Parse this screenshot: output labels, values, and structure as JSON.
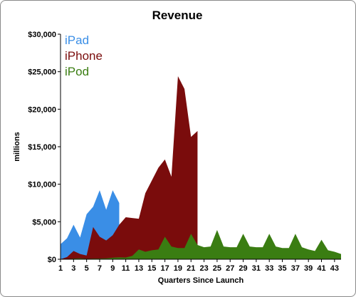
{
  "chart_data": {
    "type": "area",
    "title": "Revenue",
    "xlabel": "Quarters Since Launch",
    "ylabel": "millions",
    "xlim": [
      1,
      44
    ],
    "ylim": [
      0,
      30000
    ],
    "yticks": [
      0,
      5000,
      10000,
      15000,
      20000,
      25000,
      30000
    ],
    "ytick_labels": [
      "$0",
      "$5,000",
      "$10,000",
      "$15,000",
      "$20,000",
      "$25,000",
      "$30,000"
    ],
    "xticks": [
      1,
      3,
      5,
      7,
      9,
      11,
      13,
      15,
      17,
      19,
      21,
      23,
      25,
      27,
      29,
      31,
      33,
      35,
      37,
      39,
      41,
      43
    ],
    "grid": false,
    "legend_position": "top-left",
    "series": [
      {
        "name": "iPad",
        "color": "#3a8ee6",
        "x": [
          1,
          2,
          3,
          4,
          5,
          6,
          7,
          8,
          9,
          10
        ],
        "values": [
          2000,
          2800,
          4600,
          2900,
          6000,
          7000,
          9200,
          6600,
          9200,
          7500
        ]
      },
      {
        "name": "iPhone",
        "color": "#7a0c0c",
        "x": [
          1,
          2,
          3,
          4,
          5,
          6,
          7,
          8,
          9,
          10,
          11,
          12,
          13,
          14,
          15,
          16,
          17,
          18,
          19,
          20,
          21,
          22
        ],
        "values": [
          0,
          300,
          1100,
          700,
          500,
          4300,
          3000,
          2500,
          3200,
          4600,
          5600,
          5500,
          5400,
          8800,
          10500,
          12200,
          13300,
          11000,
          24400,
          22700,
          16300,
          17100
        ]
      },
      {
        "name": "iPod",
        "color": "#3a7d12",
        "x": [
          1,
          2,
          3,
          4,
          5,
          6,
          7,
          8,
          9,
          10,
          11,
          12,
          13,
          14,
          15,
          16,
          17,
          18,
          19,
          20,
          21,
          22,
          23,
          24,
          25,
          26,
          27,
          28,
          29,
          30,
          31,
          32,
          33,
          34,
          35,
          36,
          37,
          38,
          39,
          40,
          41,
          42,
          43,
          44
        ],
        "values": [
          0,
          30,
          80,
          120,
          60,
          80,
          100,
          120,
          200,
          250,
          220,
          450,
          1300,
          1000,
          1200,
          1300,
          3000,
          1700,
          1500,
          1500,
          3400,
          1900,
          1600,
          1700,
          3900,
          1700,
          1600,
          1600,
          3400,
          1700,
          1600,
          1600,
          3400,
          1700,
          1500,
          1500,
          3400,
          1600,
          1300,
          1100,
          2600,
          1200,
          1000,
          700
        ]
      }
    ]
  }
}
